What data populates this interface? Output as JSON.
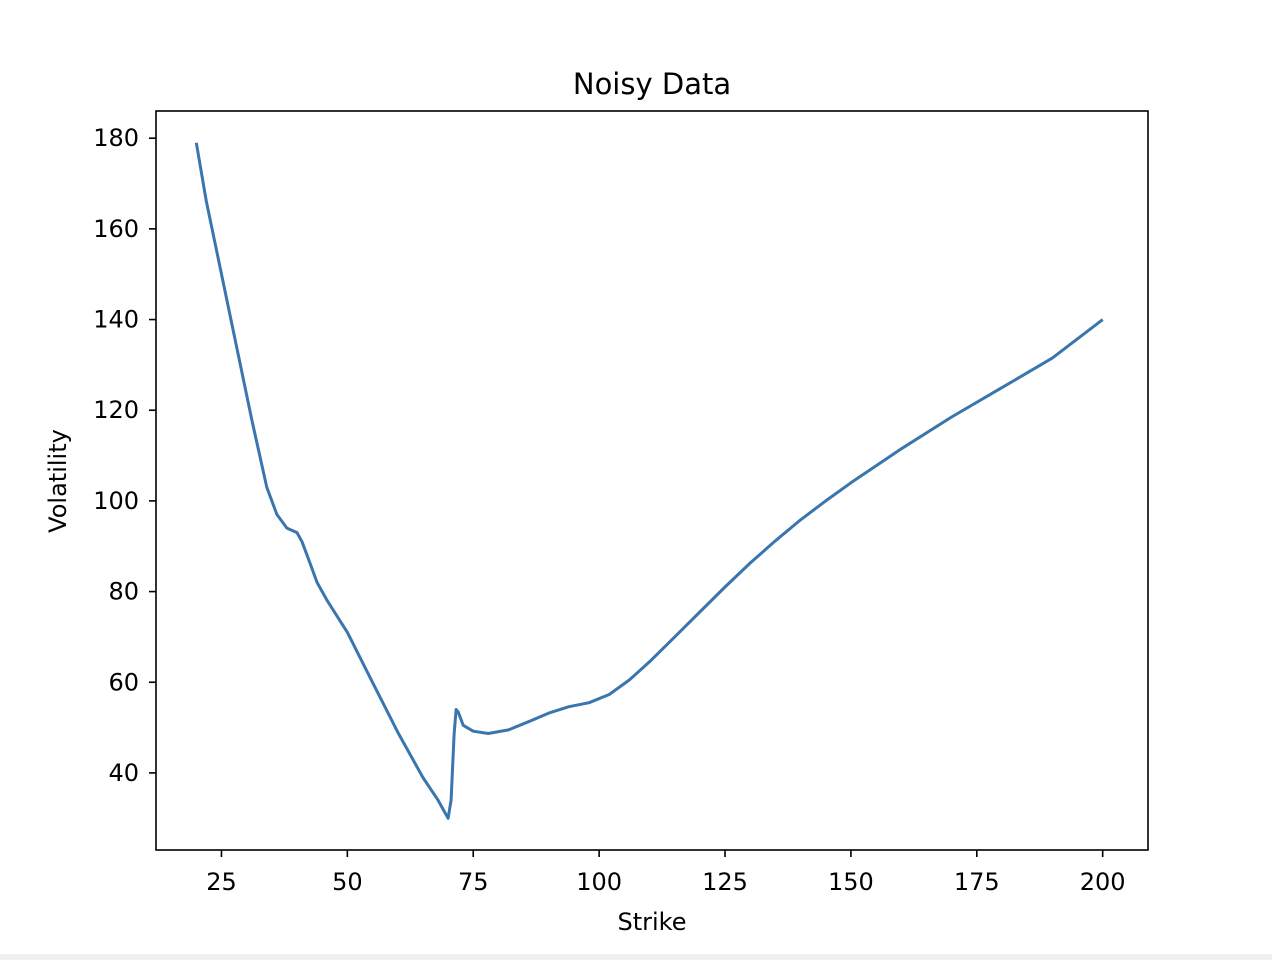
{
  "chart_data": {
    "type": "line",
    "title": "Noisy Data",
    "xlabel": "Strike",
    "ylabel": "Volatility",
    "xlim": [
      12,
      209
    ],
    "ylim": [
      23,
      186
    ],
    "xticks": [
      25,
      50,
      75,
      100,
      125,
      150,
      175,
      200
    ],
    "yticks": [
      40,
      60,
      80,
      100,
      120,
      140,
      160,
      180
    ],
    "grid": false,
    "legend": "none",
    "series": [
      {
        "color": "#3a75ae",
        "x": [
          20,
          22,
          25,
          28,
          31,
          34,
          36,
          38,
          40,
          41,
          42,
          44,
          46,
          50,
          55,
          60,
          65,
          68,
          70,
          70.6,
          71.2,
          71.6,
          72,
          73,
          75,
          78,
          82,
          86,
          90,
          94,
          98,
          102,
          106,
          110,
          115,
          120,
          125,
          130,
          135,
          140,
          145,
          150,
          160,
          170,
          180,
          190,
          200
        ],
        "y": [
          179,
          166,
          150,
          134,
          118,
          103,
          97,
          94,
          93,
          91,
          88,
          82,
          78,
          71,
          60,
          49,
          39,
          34,
          30,
          34,
          48.5,
          54,
          53.5,
          50.5,
          49.2,
          48.7,
          49.5,
          51.3,
          53.2,
          54.6,
          55.5,
          57.3,
          60.5,
          64.5,
          70,
          75.5,
          81,
          86.3,
          91.2,
          95.8,
          100,
          104,
          111.5,
          118.5,
          125,
          131.5,
          140
        ]
      }
    ]
  }
}
